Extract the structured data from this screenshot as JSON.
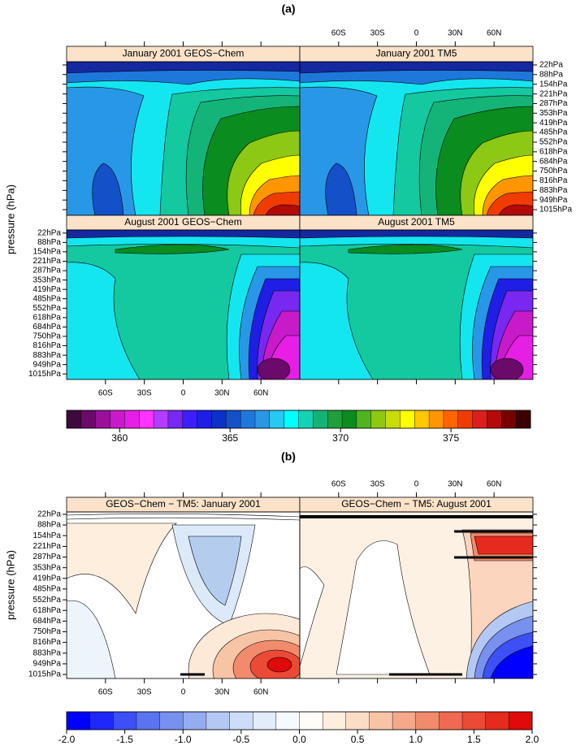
{
  "panel_a": {
    "label": "(a)",
    "y_label": "pressure (hPa)",
    "titles": [
      "January 2001 GEOS−Chem",
      "January 2001 TM5",
      "August 2001 GEOS−Chem",
      "August 2001 TM5"
    ],
    "xlim": [
      -90,
      90
    ],
    "lat_ticks": [
      {
        "value": -60,
        "label": "60S"
      },
      {
        "value": -30,
        "label": "30S"
      },
      0,
      {
        "value": 30,
        "label": "30N"
      },
      {
        "value": 60,
        "label": "60N"
      }
    ],
    "ylim": [
      1054,
      0
    ],
    "pressure_ticks": [
      {
        "value": 22,
        "label": "22hPa"
      },
      {
        "value": 88,
        "label": "88hPa"
      },
      {
        "value": 154,
        "label": "154hPa"
      },
      {
        "value": 221,
        "label": "221hPa"
      },
      {
        "value": 287,
        "label": "287hPa"
      },
      {
        "value": 353,
        "label": "353hPa"
      },
      {
        "value": 419,
        "label": "419hPa"
      },
      {
        "value": 485,
        "label": "485hPa"
      },
      {
        "value": 552,
        "label": "552hPa"
      },
      {
        "value": 618,
        "label": "618hPa"
      },
      {
        "value": 684,
        "label": "684hPa"
      },
      {
        "value": 750,
        "label": "750hPa"
      },
      {
        "value": 816,
        "label": "816hPa"
      },
      {
        "value": 883,
        "label": "883hPa"
      },
      {
        "value": 949,
        "label": "949hPa"
      },
      {
        "value": 1015,
        "label": "1015hPa"
      }
    ],
    "colorbar": {
      "clim": [
        357.6,
        378.6
      ],
      "ticks": [
        360,
        365,
        370,
        375
      ],
      "colors": [
        "#3d0a3d",
        "#6a0a6a",
        "#9b109b",
        "#c81ac8",
        "#e61ee6",
        "#ff32ff",
        "#b43cff",
        "#7828f0",
        "#3c1eff",
        "#1e1ee6",
        "#0a32c8",
        "#1450c8",
        "#1e78dc",
        "#2898e6",
        "#28c8f0",
        "#00ffff",
        "#14d2b4",
        "#14b478",
        "#1e9e3c",
        "#0a8c1e",
        "#50b41e",
        "#8cc814",
        "#c8dc0a",
        "#ffff00",
        "#ffc800",
        "#ff9600",
        "#ff6400",
        "#f03c00",
        "#dc1e1e",
        "#b40a0a",
        "#780000",
        "#3c0000"
      ]
    }
  },
  "panel_b": {
    "label": "(b)",
    "y_label": "pressure (hPa)",
    "titles": [
      "GEOS−Chem − TM5: January 2001",
      "GEOS−Chem − TM5: August 2001"
    ],
    "xlim": [
      -90,
      90
    ],
    "lat_ticks": [
      {
        "value": -60,
        "label": "60S"
      },
      {
        "value": -30,
        "label": "30S"
      },
      0,
      {
        "value": 30,
        "label": "30N"
      },
      {
        "value": 60,
        "label": "60N"
      }
    ],
    "ylim": [
      1040,
      7
    ],
    "pressure_ticks": [
      {
        "value": 22,
        "label": "22hPa"
      },
      {
        "value": 88,
        "label": "88hPa"
      },
      {
        "value": 154,
        "label": "154hPa"
      },
      {
        "value": 221,
        "label": "221hPa"
      },
      {
        "value": 287,
        "label": "287hPa"
      },
      {
        "value": 353,
        "label": "353hPa"
      },
      {
        "value": 419,
        "label": "419hPa"
      },
      {
        "value": 485,
        "label": "485hPa"
      },
      {
        "value": 552,
        "label": "552hPa"
      },
      {
        "value": 618,
        "label": "618hPa"
      },
      {
        "value": 684,
        "label": "684hPa"
      },
      {
        "value": 750,
        "label": "750hPa"
      },
      {
        "value": 816,
        "label": "816hPa"
      },
      {
        "value": 883,
        "label": "883hPa"
      },
      {
        "value": 949,
        "label": "949hPa"
      },
      {
        "value": 1015,
        "label": "1015hPa"
      }
    ],
    "colorbar": {
      "clim": [
        -2,
        2
      ],
      "ticks": [
        {
          "value": -2,
          "label": "-2.0"
        },
        {
          "value": -1.5,
          "label": "-1.5"
        },
        {
          "value": -1,
          "label": "-1.0"
        },
        {
          "value": -0.5,
          "label": "-0.5"
        },
        {
          "value": 0,
          "label": "0.0"
        },
        {
          "value": 0.5,
          "label": "0.5"
        },
        {
          "value": 1,
          "label": "1.0"
        },
        {
          "value": 1.5,
          "label": "1.5"
        },
        {
          "value": 2,
          "label": "2.0"
        }
      ],
      "colors": [
        "#0000ff",
        "#1e28fa",
        "#3c50f5",
        "#5a73f0",
        "#7891ee",
        "#96acf0",
        "#b4c8f4",
        "#cddcf8",
        "#e2ecfb",
        "#f6f9fe",
        "#fffbf6",
        "#fdeedd",
        "#fbdcc4",
        "#f8c4a6",
        "#f5a88a",
        "#f28a6c",
        "#ee6a50",
        "#ea4a36",
        "#e52a1e",
        "#e00a0a"
      ]
    }
  }
}
